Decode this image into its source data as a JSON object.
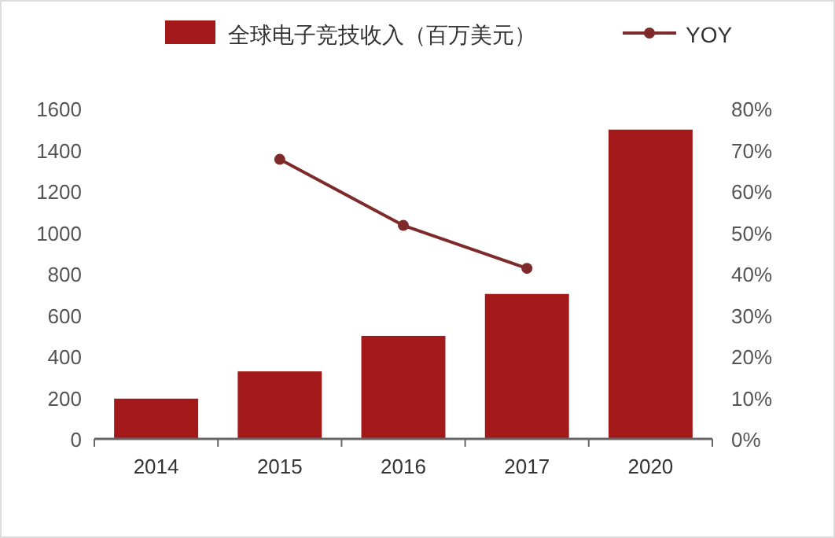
{
  "chart_data": {
    "type": "bar",
    "categories": [
      "2014",
      "2015",
      "2016",
      "2017",
      "2020"
    ],
    "series": [
      {
        "name": "全球电子竞技收入（百万美元）",
        "color": "#a31818",
        "values": [
          195,
          327,
          499,
          702,
          1498
        ]
      },
      {
        "name": "YOY",
        "type": "line",
        "axis": "y2",
        "color": "#7f2a2a",
        "marker": "circle",
        "values": [
          null,
          67.7,
          51.7,
          41.3,
          null
        ]
      }
    ],
    "ylim": [
      0,
      1600
    ],
    "yticks": [
      0,
      200,
      400,
      600,
      800,
      1000,
      1200,
      1400,
      1600
    ],
    "y2lim": [
      0,
      80
    ],
    "y2ticks": [
      {
        "value": 0,
        "label": "0%"
      },
      {
        "value": 10,
        "label": "10%"
      },
      {
        "value": 20,
        "label": "20%"
      },
      {
        "value": 30,
        "label": "30%"
      },
      {
        "value": 40,
        "label": "40%"
      },
      {
        "value": 50,
        "label": "50%"
      },
      {
        "value": 60,
        "label": "60%"
      },
      {
        "value": 70,
        "label": "70%"
      },
      {
        "value": 80,
        "label": "80%"
      }
    ],
    "legend": "top",
    "grid": false
  }
}
